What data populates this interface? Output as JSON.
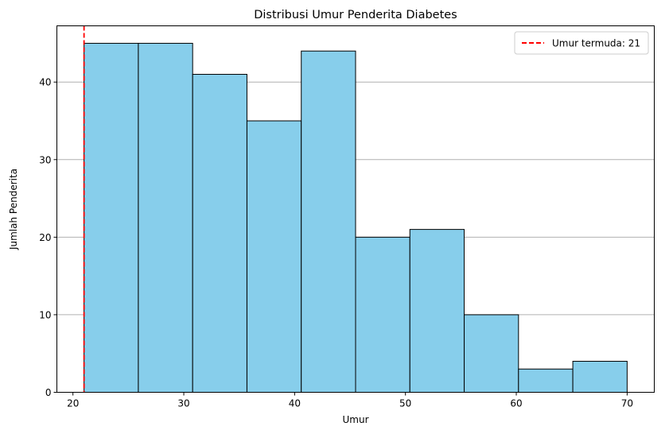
{
  "chart_data": {
    "type": "bar",
    "title": "Distribusi Umur Penderita Diabetes",
    "xlabel": "Umur",
    "ylabel": "Jumlah Penderita",
    "bin_edges": [
      21,
      25.9,
      30.8,
      35.7,
      40.6,
      45.5,
      50.4,
      55.3,
      60.2,
      65.1,
      70
    ],
    "values": [
      45,
      45,
      41,
      35,
      44,
      20,
      21,
      10,
      3,
      4
    ],
    "xlim": [
      18.55,
      72.45
    ],
    "ylim": [
      0,
      47.25
    ],
    "xticks": [
      20,
      30,
      40,
      50,
      60,
      70
    ],
    "yticks": [
      0,
      10,
      20,
      30,
      40
    ],
    "bar_color": "#87ceeb",
    "bar_edge_color": "#000000",
    "grid": "y",
    "grid_color": "#b0b0b0",
    "vline": {
      "x": 21,
      "color": "#ff0000",
      "style": "dashed",
      "label": "Umur termuda: 21"
    },
    "legend": {
      "position": "top-right",
      "entries": [
        "Umur termuda: 21"
      ]
    }
  }
}
